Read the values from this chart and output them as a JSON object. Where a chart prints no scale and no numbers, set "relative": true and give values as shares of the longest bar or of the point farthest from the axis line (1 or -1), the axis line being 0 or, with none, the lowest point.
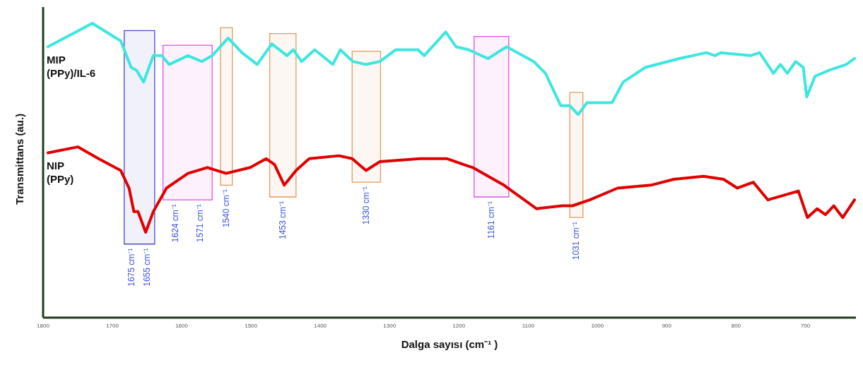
{
  "chart_data": {
    "type": "line",
    "relative": true,
    "xlabel": "Dalga sayısı (cm⁻¹ )",
    "ylabel": "Transmittans (au.)",
    "xlim": [
      1800,
      627
    ],
    "xticks": [
      1800,
      1700,
      1600,
      1500,
      1400,
      1300,
      1200,
      1100,
      1000,
      900,
      800,
      700
    ],
    "series": [
      {
        "name": "MIP (PPy)/IL-6",
        "color": "#3ee6e0",
        "x": [
          1793,
          1729,
          1688,
          1673,
          1665,
          1655,
          1641,
          1629,
          1618,
          1591,
          1571,
          1556,
          1533,
          1513,
          1491,
          1470,
          1448,
          1439,
          1427,
          1408,
          1382,
          1371,
          1353,
          1334,
          1314,
          1291,
          1259,
          1250,
          1219,
          1204,
          1186,
          1158,
          1131,
          1092,
          1075,
          1053,
          1040,
          1028,
          1015,
          979,
          963,
          931,
          882,
          843,
          830,
          822,
          779,
          766,
          746,
          736,
          726,
          714,
          703,
          698,
          686,
          666,
          641,
          629
        ],
        "values": [
          0.92,
          1.0,
          0.94,
          0.85,
          0.84,
          0.8,
          0.89,
          0.89,
          0.86,
          0.89,
          0.87,
          0.89,
          0.95,
          0.9,
          0.86,
          0.93,
          0.89,
          0.91,
          0.87,
          0.91,
          0.86,
          0.91,
          0.87,
          0.86,
          0.87,
          0.91,
          0.91,
          0.89,
          0.97,
          0.92,
          0.91,
          0.88,
          0.92,
          0.87,
          0.83,
          0.72,
          0.72,
          0.69,
          0.73,
          0.73,
          0.8,
          0.85,
          0.88,
          0.9,
          0.89,
          0.9,
          0.89,
          0.9,
          0.83,
          0.86,
          0.83,
          0.87,
          0.85,
          0.75,
          0.82,
          0.84,
          0.86,
          0.88
        ]
      },
      {
        "name": "NIP (PPy)",
        "color": "#e00000",
        "x": [
          1793,
          1750,
          1720,
          1688,
          1676,
          1669,
          1663,
          1652,
          1641,
          1622,
          1591,
          1563,
          1536,
          1501,
          1478,
          1466,
          1452,
          1435,
          1416,
          1373,
          1354,
          1334,
          1314,
          1256,
          1217,
          1193,
          1180,
          1135,
          1088,
          1051,
          1036,
          1011,
          971,
          923,
          890,
          847,
          818,
          798,
          775,
          754,
          710,
          697,
          683,
          671,
          659,
          646,
          629
        ],
        "values": [
          0.56,
          0.58,
          0.54,
          0.5,
          0.44,
          0.36,
          0.36,
          0.29,
          0.36,
          0.44,
          0.49,
          0.51,
          0.49,
          0.51,
          0.54,
          0.52,
          0.45,
          0.5,
          0.54,
          0.55,
          0.54,
          0.5,
          0.53,
          0.54,
          0.54,
          0.52,
          0.51,
          0.45,
          0.37,
          0.38,
          0.38,
          0.4,
          0.44,
          0.45,
          0.47,
          0.48,
          0.47,
          0.44,
          0.46,
          0.4,
          0.43,
          0.34,
          0.37,
          0.35,
          0.38,
          0.34,
          0.4
        ]
      }
    ],
    "bands": [
      {
        "axis": "x",
        "from": 1683,
        "to": 1639,
        "color": "#4a4ac8",
        "label": "1675 cm⁻¹\n1655 cm⁻¹"
      },
      {
        "axis": "x",
        "from": 1627,
        "to": 1556,
        "color": "#e050e0",
        "label": "1624 cm⁻¹\n1571 cm⁻¹"
      },
      {
        "axis": "x",
        "from": 1544,
        "to": 1527,
        "color": "#e09a60",
        "label": "1540 cm⁻¹"
      },
      {
        "axis": "x",
        "from": 1473,
        "to": 1435,
        "color": "#e09a60",
        "label": "1453 cm⁻¹"
      },
      {
        "axis": "x",
        "from": 1354,
        "to": 1313,
        "color": "#e09a60",
        "label": "1330 cm⁻¹"
      },
      {
        "axis": "x",
        "from": 1178,
        "to": 1128,
        "color": "#e050e0",
        "label": "1161 cm⁻¹"
      },
      {
        "axis": "x",
        "from": 1040,
        "to": 1021,
        "color": "#e09a60",
        "label": "1031 cm⁻¹"
      }
    ]
  }
}
